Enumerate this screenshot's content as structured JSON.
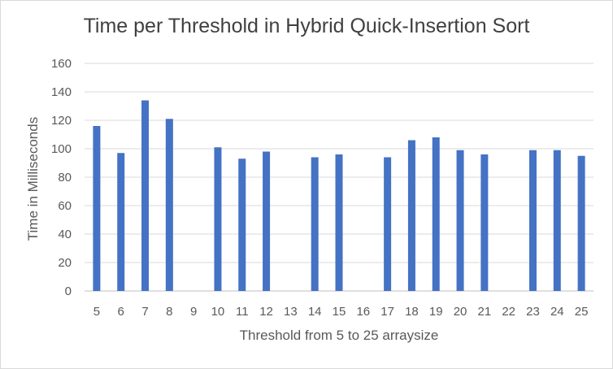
{
  "chart_data": {
    "type": "bar",
    "title": "Time per Threshold in Hybrid Quick-Insertion Sort",
    "xlabel": "Threshold from 5 to 25 arraysize",
    "ylabel": "Time in Milliseconds",
    "ylim": [
      0,
      160
    ],
    "yticks": [
      "0",
      "20",
      "40",
      "60",
      "80",
      "100",
      "120",
      "140",
      "160"
    ],
    "grid": true,
    "legend": "none",
    "bar_color": "#4472C4",
    "categories": [
      "5",
      "6",
      "7",
      "8",
      "9",
      "10",
      "11",
      "12",
      "13",
      "14",
      "15",
      "16",
      "17",
      "18",
      "19",
      "20",
      "21",
      "22",
      "23",
      "24",
      "25"
    ],
    "values": [
      116,
      97,
      134,
      121,
      null,
      101,
      93,
      98,
      null,
      94,
      96,
      null,
      94,
      106,
      108,
      99,
      96,
      null,
      99,
      99,
      95
    ]
  }
}
